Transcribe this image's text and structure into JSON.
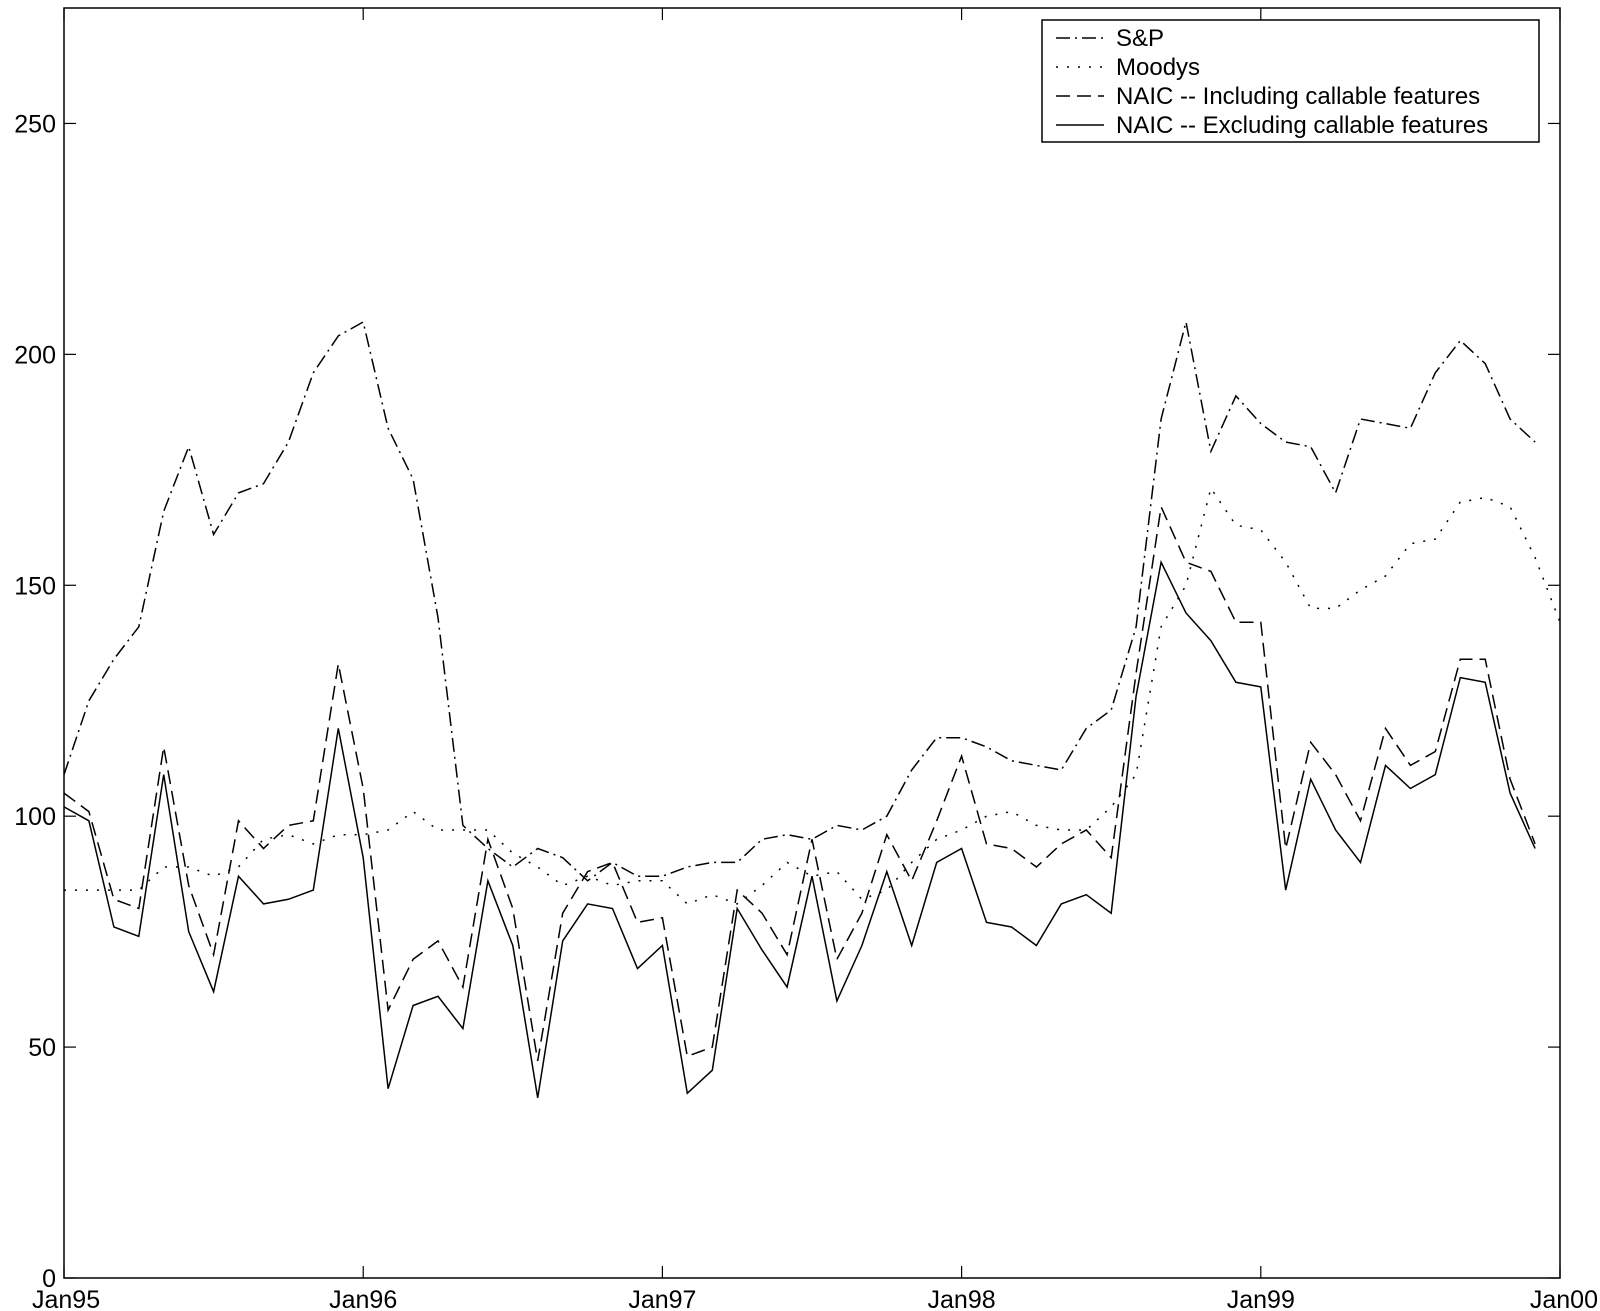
{
  "chart_data": {
    "type": "line",
    "title": "",
    "xlabel": "",
    "ylabel": "",
    "ylim": [
      0,
      275
    ],
    "xlim": [
      "1995-01",
      "2000-01"
    ],
    "x_tick_labels": [
      "Jan95",
      "Jan96",
      "Jan97",
      "Jan98",
      "Jan99",
      "Jan00"
    ],
    "y_tick_labels": [
      "0",
      "50",
      "100",
      "150",
      "200",
      "250"
    ],
    "legend_position": "top-right",
    "grid": false,
    "x": [
      "1995-01",
      "1995-02",
      "1995-03",
      "1995-04",
      "1995-05",
      "1995-06",
      "1995-07",
      "1995-08",
      "1995-09",
      "1995-10",
      "1995-11",
      "1995-12",
      "1996-01",
      "1996-02",
      "1996-03",
      "1996-04",
      "1996-05",
      "1996-06",
      "1996-07",
      "1996-08",
      "1996-09",
      "1996-10",
      "1996-11",
      "1996-12",
      "1997-01",
      "1997-02",
      "1997-03",
      "1997-04",
      "1997-05",
      "1997-06",
      "1997-07",
      "1997-08",
      "1997-09",
      "1997-10",
      "1997-11",
      "1997-12",
      "1998-01",
      "1998-02",
      "1998-03",
      "1998-04",
      "1998-05",
      "1998-06",
      "1998-07",
      "1998-08",
      "1998-09",
      "1998-10",
      "1998-11",
      "1998-12",
      "1999-01",
      "1999-02",
      "1999-03",
      "1999-04",
      "1999-05",
      "1999-06",
      "1999-07",
      "1999-08",
      "1999-09",
      "1999-10",
      "1999-11",
      "1999-12",
      "2000-01"
    ],
    "series": [
      {
        "name": "S&P",
        "dash": "dashdot",
        "values": [
          109,
          125,
          134,
          141,
          166,
          180,
          161,
          170,
          172,
          181,
          196,
          204,
          207,
          184,
          173,
          143,
          98,
          93,
          89,
          93,
          91,
          86,
          90,
          87,
          87,
          89,
          90,
          90,
          95,
          96,
          95,
          98,
          97,
          100,
          110,
          117,
          117,
          115,
          112,
          111,
          110,
          119,
          123,
          141,
          186,
          207,
          179,
          191,
          185,
          181,
          180,
          170,
          186,
          185,
          184,
          196,
          203,
          198,
          186,
          181,
          null
        ]
      },
      {
        "name": "Moodys",
        "dash": "dotted",
        "values": [
          84,
          84,
          84,
          84,
          89,
          89,
          87,
          89,
          95,
          96,
          94,
          96,
          96,
          97,
          101,
          97,
          97,
          97,
          92,
          89,
          85,
          87,
          85,
          86,
          86,
          81,
          83,
          81,
          85,
          90,
          87,
          88,
          82,
          84,
          90,
          95,
          97,
          100,
          101,
          98,
          97,
          97,
          102,
          109,
          141,
          150,
          171,
          163,
          162,
          155,
          145,
          145,
          149,
          152,
          159,
          160,
          168,
          169,
          167,
          156,
          142
        ]
      },
      {
        "name": "NAIC -- Including callable features",
        "dash": "dashed",
        "values": [
          105,
          101,
          82,
          80,
          115,
          85,
          70,
          99,
          93,
          98,
          99,
          133,
          106,
          58,
          69,
          73,
          63,
          95,
          80,
          47,
          79,
          88,
          90,
          77,
          78,
          48,
          50,
          84,
          79,
          70,
          95,
          69,
          79,
          96,
          86,
          99,
          113,
          94,
          93,
          89,
          94,
          97,
          91,
          131,
          167,
          155,
          153,
          142,
          142,
          93,
          116,
          109,
          99,
          119,
          111,
          114,
          134,
          134,
          108,
          94,
          null
        ]
      },
      {
        "name": "NAIC -- Excluding callable features",
        "dash": "solid",
        "values": [
          102,
          99,
          76,
          74,
          109,
          75,
          62,
          87,
          81,
          82,
          84,
          119,
          91,
          41,
          59,
          61,
          54,
          86,
          72,
          39,
          73,
          81,
          80,
          67,
          72,
          40,
          45,
          80,
          71,
          63,
          87,
          60,
          72,
          88,
          72,
          90,
          93,
          77,
          76,
          72,
          81,
          83,
          79,
          126,
          155,
          144,
          138,
          129,
          128,
          84,
          108,
          97,
          90,
          111,
          106,
          109,
          130,
          129,
          105,
          93,
          null
        ]
      }
    ]
  }
}
